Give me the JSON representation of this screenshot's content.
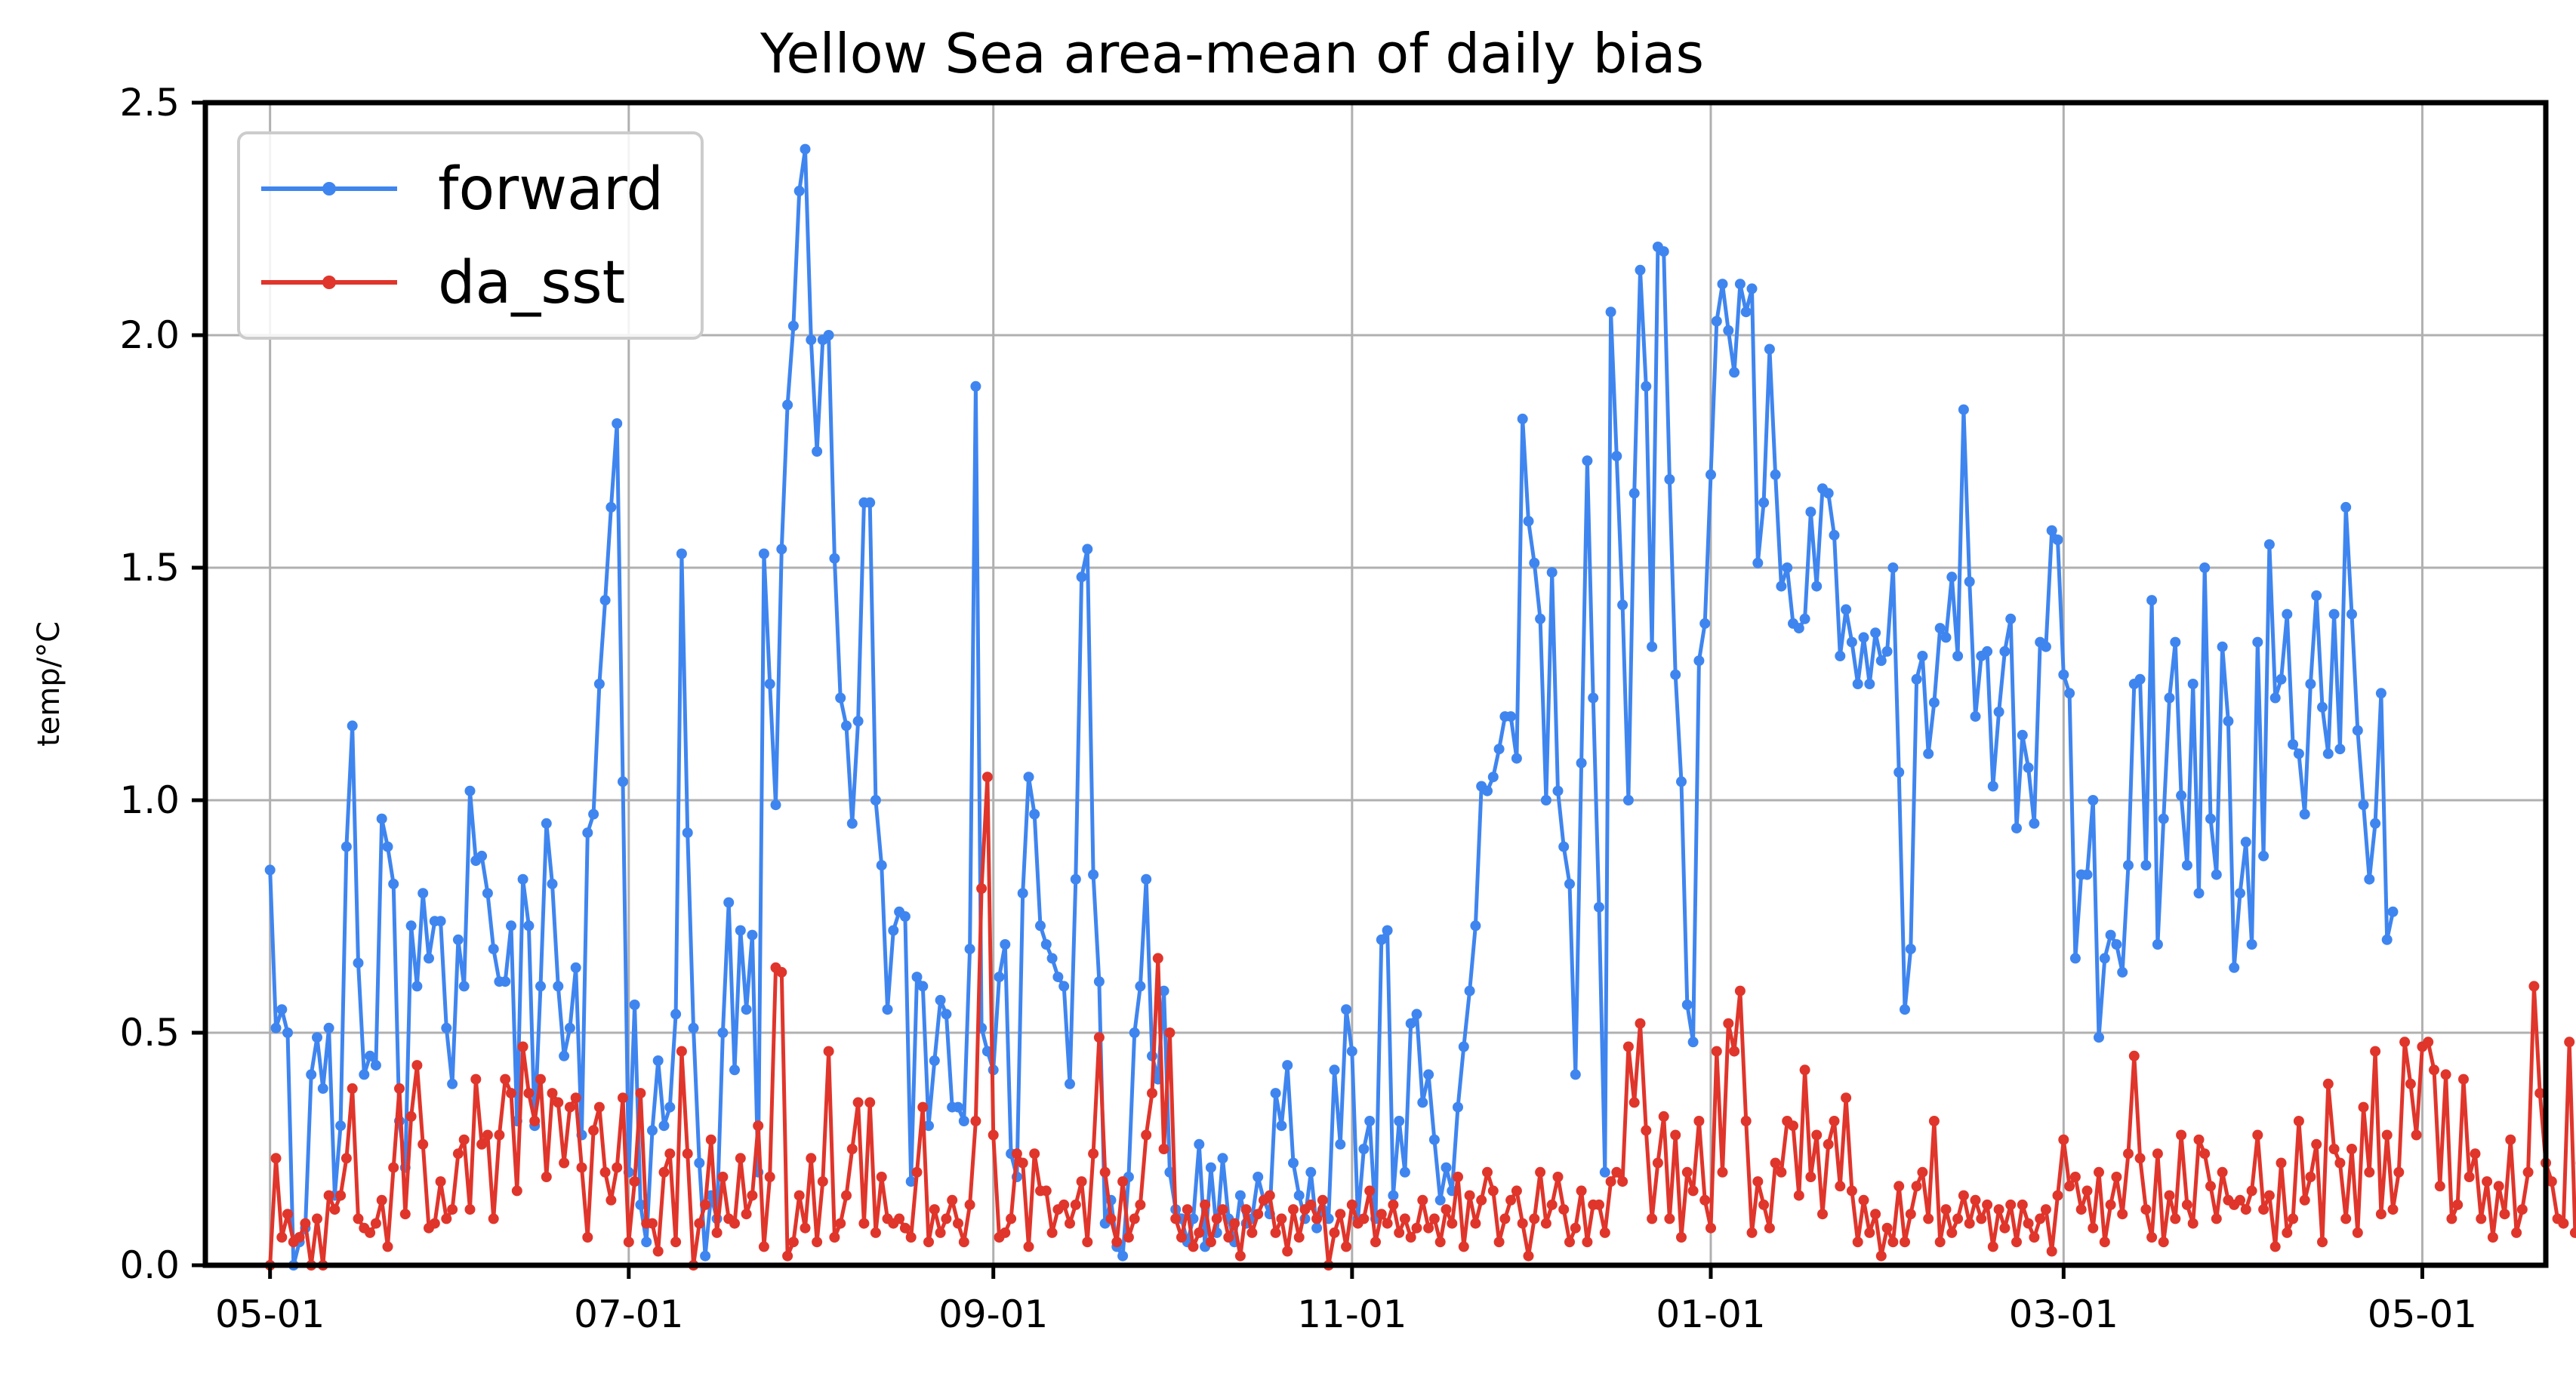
{
  "chart_data": {
    "type": "line",
    "title": "Yellow Sea area-mean of daily bias",
    "xlabel": "",
    "ylabel": "temp/°C",
    "xlim": [
      "2019-04-20",
      "2020-05-22"
    ],
    "ylim": [
      0,
      2.5
    ],
    "y_ticks": [
      0.0,
      0.5,
      1.0,
      1.5,
      2.0,
      2.5
    ],
    "y_tick_labels": [
      "0.0",
      "0.5",
      "1.0",
      "1.5",
      "2.0",
      "2.5"
    ],
    "x_ticks": [
      "2019-05-01",
      "2019-07-01",
      "2019-09-01",
      "2019-11-01",
      "2020-01-01",
      "2020-03-01",
      "2020-05-01"
    ],
    "x_tick_labels": [
      "05-01",
      "07-01",
      "09-01",
      "11-01",
      "01-01",
      "03-01",
      "05-01"
    ],
    "grid": true,
    "legend_position": "top-left",
    "start_date": "2019-05-01",
    "step": "1 day",
    "series": [
      {
        "name": "forward",
        "color": "#3f85ef",
        "values": [
          0.85,
          0.51,
          0.55,
          0.5,
          0.0,
          0.05,
          0.08,
          0.41,
          0.49,
          0.38,
          0.51,
          0.15,
          0.3,
          0.9,
          1.16,
          0.65,
          0.41,
          0.45,
          0.43,
          0.96,
          0.9,
          0.82,
          0.31,
          0.21,
          0.73,
          0.6,
          0.8,
          0.66,
          0.74,
          0.74,
          0.51,
          0.39,
          0.7,
          0.6,
          1.02,
          0.87,
          0.88,
          0.8,
          0.68,
          0.61,
          0.61,
          0.73,
          0.31,
          0.83,
          0.73,
          0.3,
          0.6,
          0.95,
          0.82,
          0.6,
          0.45,
          0.51,
          0.64,
          0.28,
          0.93,
          0.97,
          1.25,
          1.43,
          1.63,
          1.81,
          1.04,
          0.2,
          0.56,
          0.13,
          0.05,
          0.29,
          0.44,
          0.3,
          0.34,
          0.54,
          1.53,
          0.93,
          0.51,
          0.22,
          0.02,
          0.15,
          0.1,
          0.5,
          0.78,
          0.42,
          0.72,
          0.55,
          0.71,
          0.2,
          1.53,
          1.25,
          0.99,
          1.54,
          1.85,
          2.02,
          2.31,
          2.4,
          1.99,
          1.75,
          1.99,
          2.0,
          1.52,
          1.22,
          1.16,
          0.95,
          1.17,
          1.64,
          1.64,
          1.0,
          0.86,
          0.55,
          0.72,
          0.76,
          0.75,
          0.18,
          0.62,
          0.6,
          0.3,
          0.44,
          0.57,
          0.54,
          0.34,
          0.34,
          0.31,
          0.68,
          1.89,
          0.51,
          0.46,
          0.42,
          0.62,
          0.69,
          0.24,
          0.19,
          0.8,
          1.05,
          0.97,
          0.73,
          0.69,
          0.66,
          0.62,
          0.6,
          0.39,
          0.83,
          1.48,
          1.54,
          0.84,
          0.61,
          0.09,
          0.14,
          0.04,
          0.02,
          0.19,
          0.5,
          0.6,
          0.83,
          0.45,
          0.4,
          0.59,
          0.2,
          0.12,
          0.1,
          0.05,
          0.1,
          0.26,
          0.04,
          0.21,
          0.07,
          0.23,
          0.1,
          0.05,
          0.15,
          0.09,
          0.1,
          0.19,
          0.14,
          0.11,
          0.37,
          0.3,
          0.43,
          0.22,
          0.15,
          0.1,
          0.2,
          0.08,
          0.12,
          0.1,
          0.42,
          0.26,
          0.55,
          0.46,
          0.1,
          0.25,
          0.31,
          0.1,
          0.7,
          0.72,
          0.15,
          0.31,
          0.2,
          0.52,
          0.54,
          0.35,
          0.41,
          0.27,
          0.14,
          0.21,
          0.16,
          0.34,
          0.47,
          0.59,
          0.73,
          1.03,
          1.02,
          1.05,
          1.11,
          1.18,
          1.18,
          1.09,
          1.82,
          1.6,
          1.51,
          1.39,
          1.0,
          1.49,
          1.02,
          0.9,
          0.82,
          0.41,
          1.08,
          1.73,
          1.22,
          0.77,
          0.2,
          2.05,
          1.74,
          1.42,
          1.0,
          1.66,
          2.14,
          1.89,
          1.33,
          2.19,
          2.18,
          1.69,
          1.27,
          1.04,
          0.56,
          0.48,
          1.3,
          1.38,
          1.7,
          2.03,
          2.11,
          2.01,
          1.92,
          2.11,
          2.05,
          2.1,
          1.51,
          1.64,
          1.97,
          1.7,
          1.46,
          1.5,
          1.38,
          1.37,
          1.39,
          1.62,
          1.46,
          1.67,
          1.66,
          1.57,
          1.31,
          1.41,
          1.34,
          1.25,
          1.35,
          1.25,
          1.36,
          1.3,
          1.32,
          1.5,
          1.06,
          0.55,
          0.68,
          1.26,
          1.31,
          1.1,
          1.21,
          1.37,
          1.35,
          1.48,
          1.31,
          1.84,
          1.47,
          1.18,
          1.31,
          1.32,
          1.03,
          1.19,
          1.32,
          1.39,
          0.94,
          1.14,
          1.07,
          0.95,
          1.34,
          1.33,
          1.58,
          1.56,
          1.27,
          1.23,
          0.66,
          0.84,
          0.84,
          1.0,
          0.49,
          0.66,
          0.71,
          0.69,
          0.63,
          0.86,
          1.25,
          1.26,
          0.86,
          1.43,
          0.69,
          0.96,
          1.22,
          1.34,
          1.01,
          0.86,
          1.25,
          0.8,
          1.5,
          0.96,
          0.84,
          1.33,
          1.17,
          0.64,
          0.8,
          0.91,
          0.69,
          1.34,
          0.88,
          1.55,
          1.22,
          1.26,
          1.4,
          1.12,
          1.1,
          0.97,
          1.25,
          1.44,
          1.2,
          1.1,
          1.4,
          1.11,
          1.63,
          1.4,
          1.15,
          0.99,
          0.83,
          0.95,
          1.23,
          0.7,
          0.76
        ]
      },
      {
        "name": "da_sst",
        "color": "#e0352b",
        "values": [
          0.0,
          0.23,
          0.06,
          0.11,
          0.05,
          0.06,
          0.09,
          0.0,
          0.1,
          0.0,
          0.15,
          0.12,
          0.15,
          0.23,
          0.38,
          0.1,
          0.08,
          0.07,
          0.09,
          0.14,
          0.04,
          0.21,
          0.38,
          0.11,
          0.32,
          0.43,
          0.26,
          0.08,
          0.09,
          0.18,
          0.1,
          0.12,
          0.24,
          0.27,
          0.12,
          0.4,
          0.26,
          0.28,
          0.1,
          0.28,
          0.4,
          0.37,
          0.16,
          0.47,
          0.37,
          0.31,
          0.4,
          0.19,
          0.37,
          0.35,
          0.22,
          0.34,
          0.36,
          0.21,
          0.06,
          0.29,
          0.34,
          0.2,
          0.14,
          0.21,
          0.36,
          0.05,
          0.18,
          0.37,
          0.09,
          0.09,
          0.03,
          0.2,
          0.24,
          0.05,
          0.46,
          0.24,
          0.0,
          0.09,
          0.13,
          0.27,
          0.07,
          0.19,
          0.1,
          0.09,
          0.23,
          0.11,
          0.15,
          0.3,
          0.04,
          0.19,
          0.64,
          0.63,
          0.02,
          0.05,
          0.15,
          0.08,
          0.23,
          0.05,
          0.18,
          0.46,
          0.06,
          0.09,
          0.15,
          0.25,
          0.35,
          0.09,
          0.35,
          0.07,
          0.19,
          0.1,
          0.09,
          0.1,
          0.08,
          0.06,
          0.2,
          0.34,
          0.05,
          0.12,
          0.07,
          0.1,
          0.14,
          0.09,
          0.05,
          0.13,
          0.31,
          0.81,
          1.05,
          0.28,
          0.06,
          0.07,
          0.1,
          0.24,
          0.22,
          0.04,
          0.24,
          0.16,
          0.16,
          0.07,
          0.12,
          0.13,
          0.09,
          0.13,
          0.18,
          0.05,
          0.24,
          0.49,
          0.2,
          0.1,
          0.05,
          0.18,
          0.06,
          0.1,
          0.13,
          0.28,
          0.37,
          0.66,
          0.25,
          0.5,
          0.1,
          0.06,
          0.12,
          0.04,
          0.07,
          0.13,
          0.05,
          0.1,
          0.12,
          0.06,
          0.09,
          0.02,
          0.12,
          0.07,
          0.11,
          0.14,
          0.15,
          0.07,
          0.1,
          0.03,
          0.12,
          0.06,
          0.12,
          0.13,
          0.1,
          0.14,
          0.0,
          0.07,
          0.11,
          0.04,
          0.13,
          0.09,
          0.1,
          0.16,
          0.05,
          0.11,
          0.09,
          0.13,
          0.07,
          0.1,
          0.06,
          0.08,
          0.14,
          0.08,
          0.1,
          0.05,
          0.12,
          0.09,
          0.19,
          0.04,
          0.15,
          0.09,
          0.14,
          0.2,
          0.16,
          0.05,
          0.1,
          0.14,
          0.16,
          0.09,
          0.02,
          0.1,
          0.2,
          0.09,
          0.13,
          0.19,
          0.12,
          0.05,
          0.08,
          0.16,
          0.05,
          0.13,
          0.13,
          0.07,
          0.18,
          0.2,
          0.18,
          0.47,
          0.35,
          0.52,
          0.29,
          0.1,
          0.22,
          0.32,
          0.1,
          0.28,
          0.06,
          0.2,
          0.16,
          0.31,
          0.14,
          0.08,
          0.46,
          0.2,
          0.52,
          0.46,
          0.59,
          0.31,
          0.07,
          0.18,
          0.13,
          0.08,
          0.22,
          0.2,
          0.31,
          0.3,
          0.15,
          0.42,
          0.19,
          0.28,
          0.11,
          0.26,
          0.31,
          0.17,
          0.36,
          0.16,
          0.05,
          0.14,
          0.07,
          0.11,
          0.02,
          0.08,
          0.05,
          0.17,
          0.05,
          0.11,
          0.17,
          0.2,
          0.1,
          0.31,
          0.05,
          0.12,
          0.07,
          0.1,
          0.15,
          0.09,
          0.14,
          0.1,
          0.13,
          0.04,
          0.12,
          0.08,
          0.13,
          0.05,
          0.13,
          0.09,
          0.06,
          0.1,
          0.12,
          0.03,
          0.15,
          0.27,
          0.17,
          0.19,
          0.12,
          0.16,
          0.08,
          0.2,
          0.05,
          0.13,
          0.19,
          0.11,
          0.24,
          0.45,
          0.23,
          0.12,
          0.06,
          0.24,
          0.05,
          0.15,
          0.1,
          0.28,
          0.13,
          0.09,
          0.27,
          0.24,
          0.17,
          0.1,
          0.2,
          0.14,
          0.13,
          0.14,
          0.12,
          0.16,
          0.28,
          0.12,
          0.15,
          0.04,
          0.22,
          0.07,
          0.1,
          0.31,
          0.14,
          0.19,
          0.26,
          0.05,
          0.39,
          0.25,
          0.22,
          0.1,
          0.25,
          0.07,
          0.34,
          0.2,
          0.46,
          0.11,
          0.28,
          0.12,
          0.2,
          0.48,
          0.39,
          0.28,
          0.47,
          0.48,
          0.42,
          0.17,
          0.41,
          0.1,
          0.13,
          0.4,
          0.19,
          0.24,
          0.1,
          0.18,
          0.06,
          0.17,
          0.11,
          0.27,
          0.07,
          0.12,
          0.2,
          0.6,
          0.37,
          0.22,
          0.18,
          0.1,
          0.09,
          0.48,
          0.07,
          0.22
        ]
      }
    ]
  }
}
